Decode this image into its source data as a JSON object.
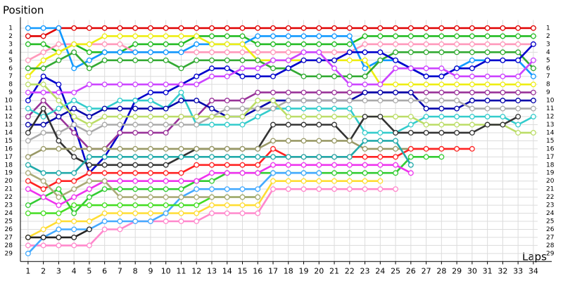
{
  "chart_data": {
    "type": "line",
    "y_label": "Position",
    "x_label": "Laps",
    "x": [
      1,
      2,
      3,
      4,
      5,
      6,
      7,
      8,
      9,
      10,
      11,
      12,
      13,
      14,
      15,
      16,
      17,
      18,
      19,
      20,
      21,
      22,
      23,
      24,
      25,
      26,
      27,
      28,
      29,
      30,
      31,
      32,
      33,
      34
    ],
    "xlim": [
      0.5,
      35.2
    ],
    "xticks": [
      1,
      2,
      3,
      4,
      5,
      6,
      7,
      8,
      9,
      10,
      11,
      12,
      13,
      14,
      15,
      16,
      17,
      18,
      19,
      20,
      21,
      22,
      23,
      24,
      25,
      26,
      27,
      28,
      29,
      30,
      31,
      32,
      33,
      34
    ],
    "ylim": [
      0,
      30
    ],
    "y_inverted": true,
    "yticks": [
      1,
      2,
      3,
      4,
      5,
      6,
      7,
      8,
      9,
      10,
      11,
      12,
      13,
      14,
      15,
      16,
      17,
      18,
      19,
      20,
      21,
      22,
      23,
      24,
      25,
      26,
      27,
      28,
      29
    ],
    "grid": true,
    "series": [
      {
        "color": "#e00000",
        "values": [
          2,
          2,
          1,
          1,
          1,
          1,
          1,
          1,
          1,
          1,
          1,
          1,
          1,
          1,
          1,
          1,
          1,
          1,
          1,
          1,
          1,
          1,
          1,
          1,
          1,
          1,
          1,
          1,
          1,
          1,
          1,
          1,
          1,
          1
        ]
      },
      {
        "color": "#22bb22",
        "values": [
          3,
          3,
          4,
          3,
          4,
          4,
          4,
          3,
          3,
          3,
          3,
          2,
          2,
          2,
          2,
          3,
          3,
          3,
          3,
          3,
          3,
          3,
          2,
          2,
          2,
          2,
          2,
          2,
          2,
          2,
          2,
          2,
          2,
          2
        ]
      },
      {
        "color": "#ff99bb",
        "values": [
          5,
          4,
          3,
          3,
          3,
          3,
          3,
          4,
          4,
          4,
          4,
          4,
          4,
          4,
          4,
          4,
          4,
          4,
          4,
          4,
          4,
          4,
          3,
          3,
          3,
          3,
          3,
          3,
          3,
          3,
          3,
          3,
          3,
          3
        ]
      },
      {
        "color": "#1199ff",
        "values": [
          1,
          1,
          1,
          6,
          5,
          4,
          4,
          4,
          4,
          4,
          4,
          3,
          3,
          3,
          3,
          2,
          2,
          2,
          2,
          2,
          2,
          2,
          6,
          5,
          5,
          6,
          7,
          7,
          6,
          5,
          5,
          5,
          5,
          7
        ]
      },
      {
        "color": "#eeee11",
        "values": [
          7,
          5,
          4,
          3,
          3,
          2,
          2,
          2,
          2,
          2,
          2,
          2,
          3,
          3,
          3,
          5,
          5,
          5,
          5,
          5,
          5,
          5,
          5,
          8,
          8,
          8,
          8,
          8,
          8,
          8,
          8,
          8,
          8,
          8
        ]
      },
      {
        "color": "#33aa33",
        "values": [
          6,
          6,
          5,
          4,
          6,
          5,
          5,
          5,
          5,
          5,
          6,
          5,
          5,
          5,
          5,
          5,
          6,
          6,
          7,
          7,
          7,
          7,
          7,
          5,
          4,
          4,
          4,
          4,
          4,
          4,
          4,
          4,
          4,
          6
        ]
      },
      {
        "color": "#0000cc",
        "values": [
          10,
          7,
          8,
          13,
          19,
          17,
          14,
          10,
          9,
          9,
          8,
          7,
          6,
          6,
          7,
          7,
          7,
          6,
          5,
          5,
          5,
          4,
          4,
          4,
          5,
          6,
          7,
          7,
          6,
          6,
          5,
          5,
          5,
          3
        ]
      },
      {
        "color": "#993399",
        "values": [
          12,
          10,
          12,
          14,
          16,
          16,
          14,
          14,
          14,
          14,
          12,
          12,
          10,
          10,
          10,
          9,
          9,
          9,
          9,
          9,
          9,
          9,
          9,
          9,
          9,
          9,
          9,
          9,
          9,
          9,
          9,
          9,
          9,
          9
        ]
      },
      {
        "color": "#cc44ff",
        "values": [
          9,
          9,
          9,
          9,
          8,
          8,
          8,
          8,
          8,
          8,
          8,
          8,
          7,
          7,
          6,
          6,
          5,
          5,
          4,
          4,
          6,
          8,
          8,
          8,
          6,
          6,
          6,
          6,
          7,
          7,
          7,
          7,
          7,
          5
        ]
      },
      {
        "color": "#33cccc",
        "values": [
          11,
          12,
          11,
          10,
          11,
          11,
          10,
          10,
          10,
          11,
          9,
          13,
          13,
          13,
          13,
          12,
          11,
          11,
          11,
          11,
          11,
          11,
          14,
          14,
          14,
          13,
          12,
          12,
          12,
          12,
          12,
          12,
          13,
          12
        ]
      },
      {
        "color": "#0000aa",
        "values": [
          13,
          13,
          12,
          11,
          12,
          11,
          11,
          11,
          11,
          11,
          10,
          10,
          11,
          12,
          12,
          11,
          10,
          10,
          10,
          10,
          10,
          10,
          9,
          9,
          9,
          9,
          11,
          11,
          11,
          10,
          10,
          10,
          10,
          10
        ]
      },
      {
        "color": "#aaaaaa",
        "values": [
          15,
          14,
          14,
          13,
          14,
          13,
          13,
          13,
          13,
          13,
          13,
          13,
          12,
          11,
          11,
          11,
          11,
          10,
          10,
          10,
          10,
          10,
          10,
          10,
          10,
          10,
          10,
          10,
          10,
          11,
          11,
          11,
          11,
          11
        ]
      },
      {
        "color": "#bbdd66",
        "values": [
          8,
          8,
          10,
          12,
          13,
          12,
          12,
          12,
          12,
          12,
          12,
          12,
          12,
          12,
          12,
          10,
          10,
          12,
          12,
          12,
          12,
          12,
          12,
          12,
          12,
          12,
          13,
          13,
          13,
          13,
          13,
          13,
          14,
          14
        ]
      },
      {
        "color": "#333333",
        "values": [
          14,
          11,
          15,
          17,
          18,
          18,
          18,
          18,
          18,
          18,
          17,
          16,
          16,
          16,
          16,
          16,
          13,
          13,
          13,
          13,
          13,
          15,
          12,
          12,
          14,
          14,
          14,
          14,
          14,
          14,
          13,
          13,
          12,
          null
        ]
      },
      {
        "color": "#999966",
        "values": [
          17,
          16,
          16,
          16,
          16,
          16,
          16,
          16,
          16,
          16,
          16,
          16,
          16,
          16,
          16,
          16,
          15,
          15,
          15,
          15,
          15,
          15,
          16,
          16,
          16,
          16,
          16,
          16,
          16,
          null,
          null,
          null,
          null,
          null
        ]
      },
      {
        "color": "#ff2222",
        "values": [
          20,
          21,
          20,
          20,
          19,
          19,
          19,
          19,
          19,
          19,
          19,
          18,
          18,
          18,
          18,
          18,
          16,
          17,
          17,
          17,
          17,
          17,
          17,
          17,
          17,
          16,
          16,
          16,
          16,
          16,
          null,
          null,
          null,
          null
        ]
      },
      {
        "color": "#33cc33",
        "values": [
          23,
          22,
          21,
          24,
          22,
          21,
          21,
          21,
          21,
          21,
          21,
          20,
          20,
          19,
          19,
          19,
          19,
          19,
          19,
          19,
          19,
          19,
          19,
          19,
          19,
          17,
          17,
          17,
          null,
          null,
          null,
          null,
          null,
          null
        ]
      },
      {
        "color": "#ee33ee",
        "values": [
          21,
          22,
          23,
          22,
          21,
          20,
          20,
          20,
          20,
          20,
          20,
          20,
          19,
          19,
          19,
          19,
          18,
          18,
          18,
          18,
          18,
          18,
          18,
          18,
          18,
          19,
          null,
          null,
          null,
          null,
          null,
          null,
          null,
          null
        ]
      },
      {
        "color": "#22aaaa",
        "values": [
          18,
          19,
          19,
          19,
          17,
          17,
          17,
          17,
          17,
          17,
          17,
          17,
          17,
          17,
          17,
          17,
          17,
          17,
          17,
          17,
          17,
          17,
          15,
          15,
          15,
          18,
          null,
          null,
          null,
          null,
          null,
          null,
          null,
          null
        ]
      },
      {
        "color": "#ff88cc",
        "values": [
          28,
          28,
          28,
          28,
          28,
          26,
          26,
          25,
          25,
          25,
          25,
          25,
          24,
          24,
          24,
          24,
          21,
          21,
          21,
          21,
          21,
          21,
          21,
          21,
          21,
          null,
          null,
          null,
          null,
          null,
          null,
          null,
          null,
          null
        ]
      },
      {
        "color": "#ffdd33",
        "values": [
          27,
          26,
          25,
          25,
          25,
          24,
          24,
          24,
          24,
          24,
          24,
          24,
          23,
          23,
          23,
          23,
          20,
          20,
          20,
          20,
          20,
          20,
          20,
          20,
          null,
          null,
          null,
          null,
          null,
          null,
          null,
          null,
          null,
          null
        ]
      },
      {
        "color": "#44aaff",
        "values": [
          29,
          27,
          26,
          26,
          26,
          25,
          25,
          25,
          25,
          24,
          22,
          21,
          21,
          21,
          21,
          21,
          19,
          19,
          19,
          19,
          null,
          null,
          null,
          null,
          null,
          null,
          null,
          null,
          null,
          null,
          null,
          null,
          null,
          null
        ]
      },
      {
        "color": "#222222",
        "values": [
          27,
          27,
          27,
          27,
          26,
          null,
          null,
          null,
          null,
          null,
          null,
          null,
          null,
          null,
          null,
          null,
          null,
          null,
          null,
          null,
          null,
          null,
          null,
          null,
          null,
          null,
          null,
          null,
          null,
          null,
          null,
          null,
          null,
          null
        ]
      },
      {
        "color": "#44dd22",
        "values": [
          24,
          24,
          24,
          23,
          23,
          23,
          23,
          23,
          23,
          23,
          23,
          23,
          22,
          22,
          22,
          22,
          null,
          null,
          null,
          null,
          null,
          null,
          null,
          null,
          null,
          null,
          null,
          null,
          null,
          null,
          null,
          null,
          null,
          null
        ]
      },
      {
        "color": "#aaaa77",
        "values": [
          19,
          20,
          22,
          21,
          20,
          20,
          22,
          22,
          22,
          22,
          22,
          22,
          22,
          22,
          22,
          22,
          null,
          null,
          null,
          null,
          null,
          null,
          null,
          null,
          null,
          null,
          null,
          null,
          null,
          null,
          null,
          null,
          null,
          null
        ]
      }
    ]
  }
}
